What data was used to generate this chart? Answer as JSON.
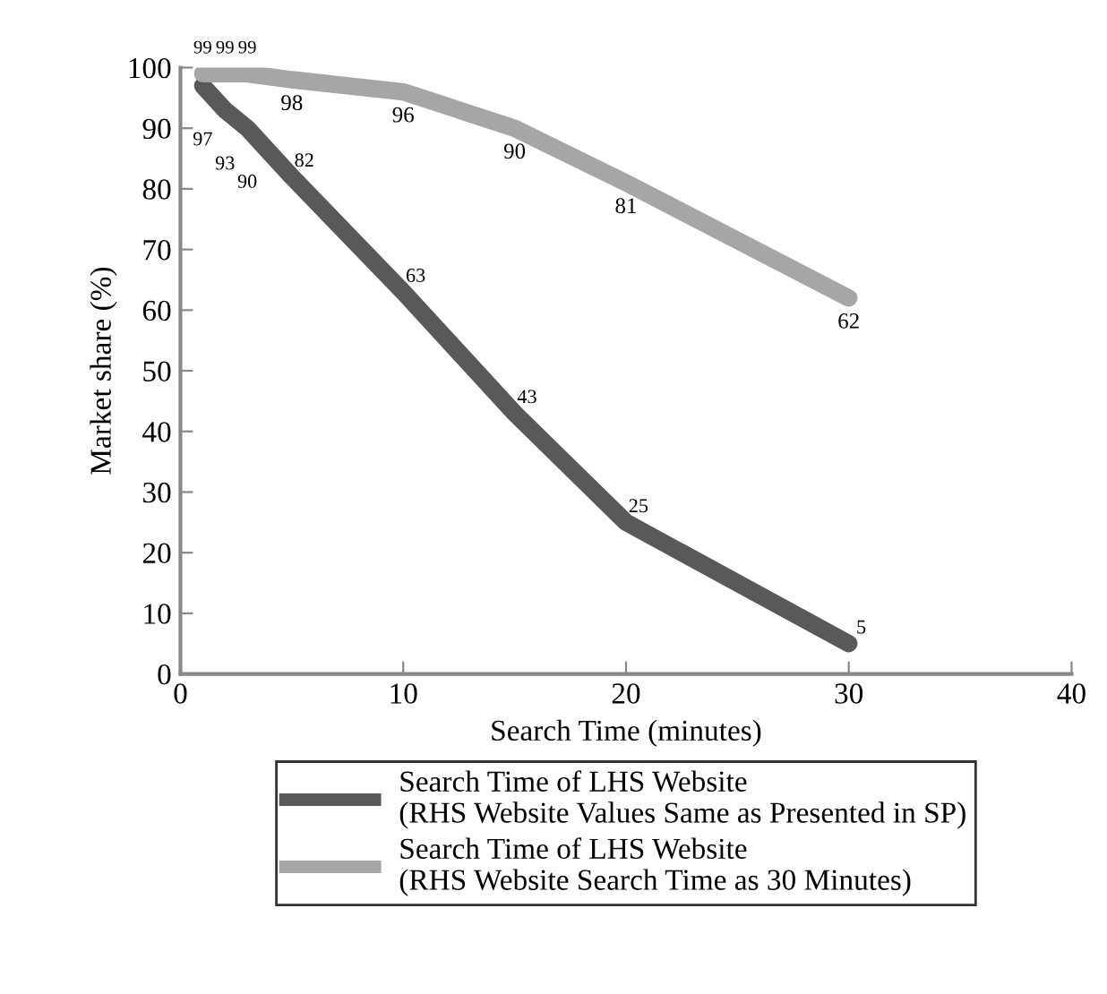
{
  "chart_data": {
    "type": "line",
    "xlabel": "Search Time (minutes)",
    "ylabel": "Market share (%)",
    "xlim": [
      0,
      40
    ],
    "xticks": [
      0,
      10,
      20,
      30,
      40
    ],
    "ylim": [
      0,
      100
    ],
    "yticks": [
      0,
      10,
      20,
      30,
      40,
      50,
      60,
      70,
      80,
      90,
      100
    ],
    "grid": false,
    "legend": "bottom",
    "marker": "none",
    "line_style": "solid",
    "data_labels": true,
    "series": [
      {
        "name": "Search Time of LHS Website\n(RHS Website Values Same as Presented in SP)",
        "color": "#595959",
        "x": [
          1,
          2,
          3,
          5,
          10,
          15,
          20,
          30
        ],
        "values": [
          97,
          93,
          90,
          82,
          63,
          43,
          25,
          5
        ]
      },
      {
        "name": "Search Time of LHS Website\n(RHS Website Search Time as 30 Minutes)",
        "color": "#a6a6a6",
        "x": [
          1,
          2,
          3,
          5,
          10,
          15,
          20,
          30
        ],
        "values": [
          99,
          99,
          99,
          98,
          96,
          90,
          81,
          62
        ]
      }
    ]
  }
}
